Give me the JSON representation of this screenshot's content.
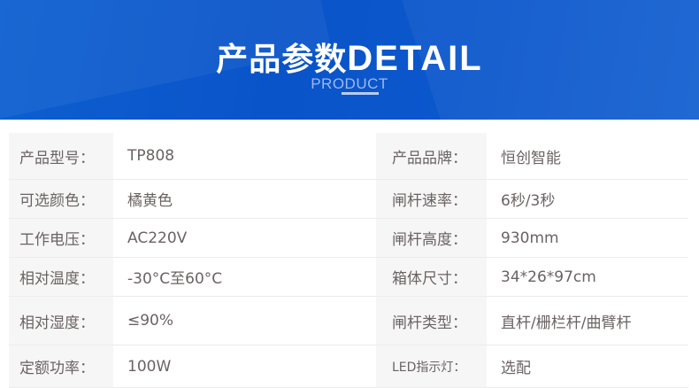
{
  "header": {
    "title_cn": "产品参数",
    "title_en": "DETAIL",
    "subtitle": "PRODUCT",
    "accent": "#0a56c8"
  },
  "specs": [
    {
      "l1": "产品型号：",
      "v1": "TP808",
      "l2": "产品品牌：",
      "v2": "恒创智能"
    },
    {
      "l1": "可选颜色：",
      "v1": "橘黄色",
      "l2": "闸杆速率：",
      "v2": "6秒/3秒"
    },
    {
      "l1": "工作电压：",
      "v1": "AC220V",
      "l2": "闸杆高度：",
      "v2": "930mm"
    },
    {
      "l1": "相对温度：",
      "v1": "-30°C至60°C",
      "l2": "箱体尺寸：",
      "v2": "34*26*97cm"
    },
    {
      "l1": "相对湿度：",
      "v1": "≤90%",
      "l2": "闸杆类型：",
      "v2": "直杆/栅栏杆/曲臂杆"
    },
    {
      "l1": "定额功率：",
      "v1": "100W",
      "l2": "LED指示灯：",
      "v2": "选配"
    }
  ]
}
